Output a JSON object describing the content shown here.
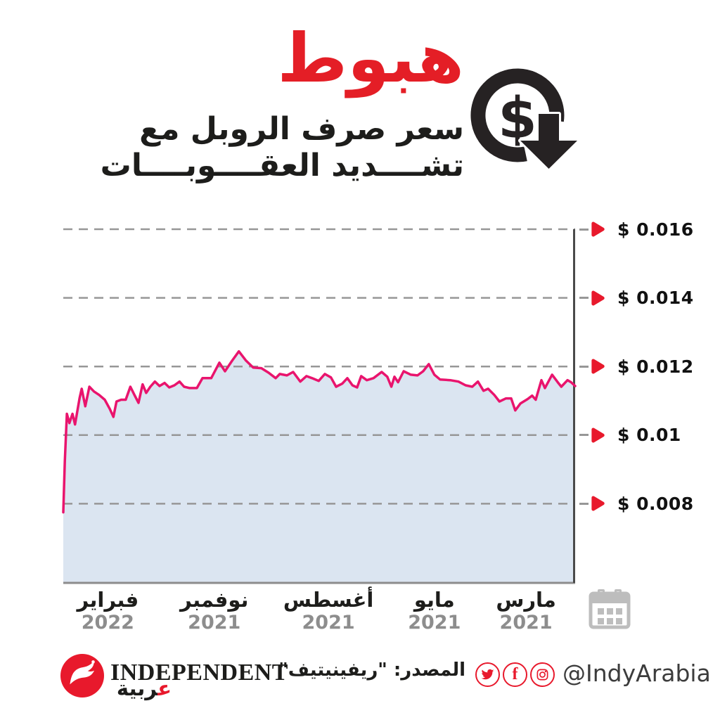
{
  "header": {
    "title": "هبوط",
    "subtitle_line1": "سعر صرف الروبل مع",
    "subtitle_line2": "تشــــديد العقــــوبــــات",
    "icon": "dollar-coin-with-down-arrow"
  },
  "colors": {
    "accent_red": "#e8192c",
    "title_red": "#e41e26",
    "line_pink": "#e9146d",
    "area_fill_blue": "#dbe5f1",
    "grid_gray": "#979797",
    "axis_gray": "#4a4a4a",
    "year_gray": "#8d8d8d",
    "calendar_gray": "#bdbdbd",
    "text_ink": "#1d1d1b"
  },
  "chart_data": {
    "type": "area",
    "title": "هبوط سعر صرف الروبل مع تشديد العقوبات",
    "unit": "USD per ruble",
    "grid": "dashed horizontal",
    "legend": "none",
    "axis_side": "right",
    "time_direction": "right-to-left (مارس 2021 at right, فبراير 2022 at left)",
    "ylim": [
      0.00569,
      0.01633
    ],
    "y_ticks": [
      {
        "label": "$ 0.016",
        "value": 0.016
      },
      {
        "label": "$ 0.014",
        "value": 0.014
      },
      {
        "label": "$ 0.012",
        "value": 0.012
      },
      {
        "label": "$ 0.01",
        "value": 0.01
      },
      {
        "label": "$ 0.008",
        "value": 0.008
      }
    ],
    "x_ticks": [
      {
        "month": "فبراير",
        "year": "2022",
        "pos_pct": 8.7
      },
      {
        "month": "نوفمبر",
        "year": "2021",
        "pos_pct": 29.5
      },
      {
        "month": "أغسطس",
        "year": "2021",
        "pos_pct": 51.8
      },
      {
        "month": "مايو",
        "year": "2021",
        "pos_pct": 72.5
      },
      {
        "month": "مارس",
        "year": "2021",
        "pos_pct": 90.4
      }
    ],
    "points": [
      [
        0,
        0.00775
      ],
      [
        0.3,
        0.00924
      ],
      [
        0.7,
        0.01062
      ],
      [
        1.2,
        0.01035
      ],
      [
        1.8,
        0.01062
      ],
      [
        2.3,
        0.01031
      ],
      [
        3.2,
        0.01109
      ],
      [
        3.6,
        0.01135
      ],
      [
        4.3,
        0.01084
      ],
      [
        5.1,
        0.01141
      ],
      [
        6.0,
        0.01127
      ],
      [
        7.0,
        0.01117
      ],
      [
        8.1,
        0.01103
      ],
      [
        9.1,
        0.01076
      ],
      [
        9.8,
        0.01053
      ],
      [
        10.4,
        0.01098
      ],
      [
        11.3,
        0.01103
      ],
      [
        12.2,
        0.01103
      ],
      [
        13.1,
        0.01141
      ],
      [
        13.9,
        0.01117
      ],
      [
        14.7,
        0.01094
      ],
      [
        15.5,
        0.01148
      ],
      [
        16.2,
        0.01123
      ],
      [
        17.0,
        0.01141
      ],
      [
        17.9,
        0.01156
      ],
      [
        18.8,
        0.01143
      ],
      [
        19.8,
        0.01152
      ],
      [
        20.7,
        0.01139
      ],
      [
        21.7,
        0.01145
      ],
      [
        22.7,
        0.01156
      ],
      [
        23.6,
        0.01141
      ],
      [
        24.7,
        0.01137
      ],
      [
        26.1,
        0.01137
      ],
      [
        27.2,
        0.01166
      ],
      [
        28.9,
        0.01166
      ],
      [
        30.5,
        0.01211
      ],
      [
        31.6,
        0.01186
      ],
      [
        33.0,
        0.01217
      ],
      [
        34.3,
        0.01244
      ],
      [
        35.7,
        0.01217
      ],
      [
        37.1,
        0.01197
      ],
      [
        38.7,
        0.01195
      ],
      [
        40.1,
        0.01182
      ],
      [
        41.5,
        0.01166
      ],
      [
        42.3,
        0.01178
      ],
      [
        43.7,
        0.01174
      ],
      [
        44.9,
        0.01184
      ],
      [
        46.3,
        0.01156
      ],
      [
        47.5,
        0.01172
      ],
      [
        48.6,
        0.01166
      ],
      [
        49.9,
        0.01158
      ],
      [
        51.1,
        0.01178
      ],
      [
        52.3,
        0.01168
      ],
      [
        53.3,
        0.01141
      ],
      [
        54.5,
        0.0115
      ],
      [
        55.5,
        0.01166
      ],
      [
        56.5,
        0.01145
      ],
      [
        57.4,
        0.01139
      ],
      [
        58.2,
        0.01172
      ],
      [
        59.3,
        0.0116
      ],
      [
        60.6,
        0.01166
      ],
      [
        62.2,
        0.01184
      ],
      [
        63.3,
        0.0117
      ],
      [
        64.1,
        0.01141
      ],
      [
        64.7,
        0.0117
      ],
      [
        65.4,
        0.01154
      ],
      [
        66.5,
        0.01186
      ],
      [
        67.9,
        0.01176
      ],
      [
        69.2,
        0.01174
      ],
      [
        70.3,
        0.01186
      ],
      [
        71.4,
        0.01207
      ],
      [
        72.5,
        0.01176
      ],
      [
        73.6,
        0.01162
      ],
      [
        75.6,
        0.0116
      ],
      [
        77.2,
        0.01156
      ],
      [
        78.6,
        0.01145
      ],
      [
        79.9,
        0.01141
      ],
      [
        81.0,
        0.01156
      ],
      [
        82.1,
        0.01129
      ],
      [
        83.0,
        0.01135
      ],
      [
        84.2,
        0.01117
      ],
      [
        85.2,
        0.01098
      ],
      [
        86.5,
        0.01107
      ],
      [
        87.5,
        0.01107
      ],
      [
        88.3,
        0.01072
      ],
      [
        89.3,
        0.01092
      ],
      [
        90.7,
        0.01105
      ],
      [
        91.6,
        0.01115
      ],
      [
        92.3,
        0.01103
      ],
      [
        93.4,
        0.0116
      ],
      [
        94.1,
        0.01137
      ],
      [
        95.5,
        0.01176
      ],
      [
        96.6,
        0.01154
      ],
      [
        97.3,
        0.01141
      ],
      [
        98.5,
        0.0116
      ],
      [
        99.2,
        0.01154
      ],
      [
        100,
        0.01143
      ]
    ]
  },
  "footer": {
    "brand": "INDEPENDENT",
    "brand_ar_first": "ع",
    "brand_ar_rest": "ربية",
    "source": "المصدر: \"ريفينيتيف\"",
    "handle": "@IndyArabia",
    "social": [
      "twitter",
      "facebook",
      "instagram"
    ]
  }
}
